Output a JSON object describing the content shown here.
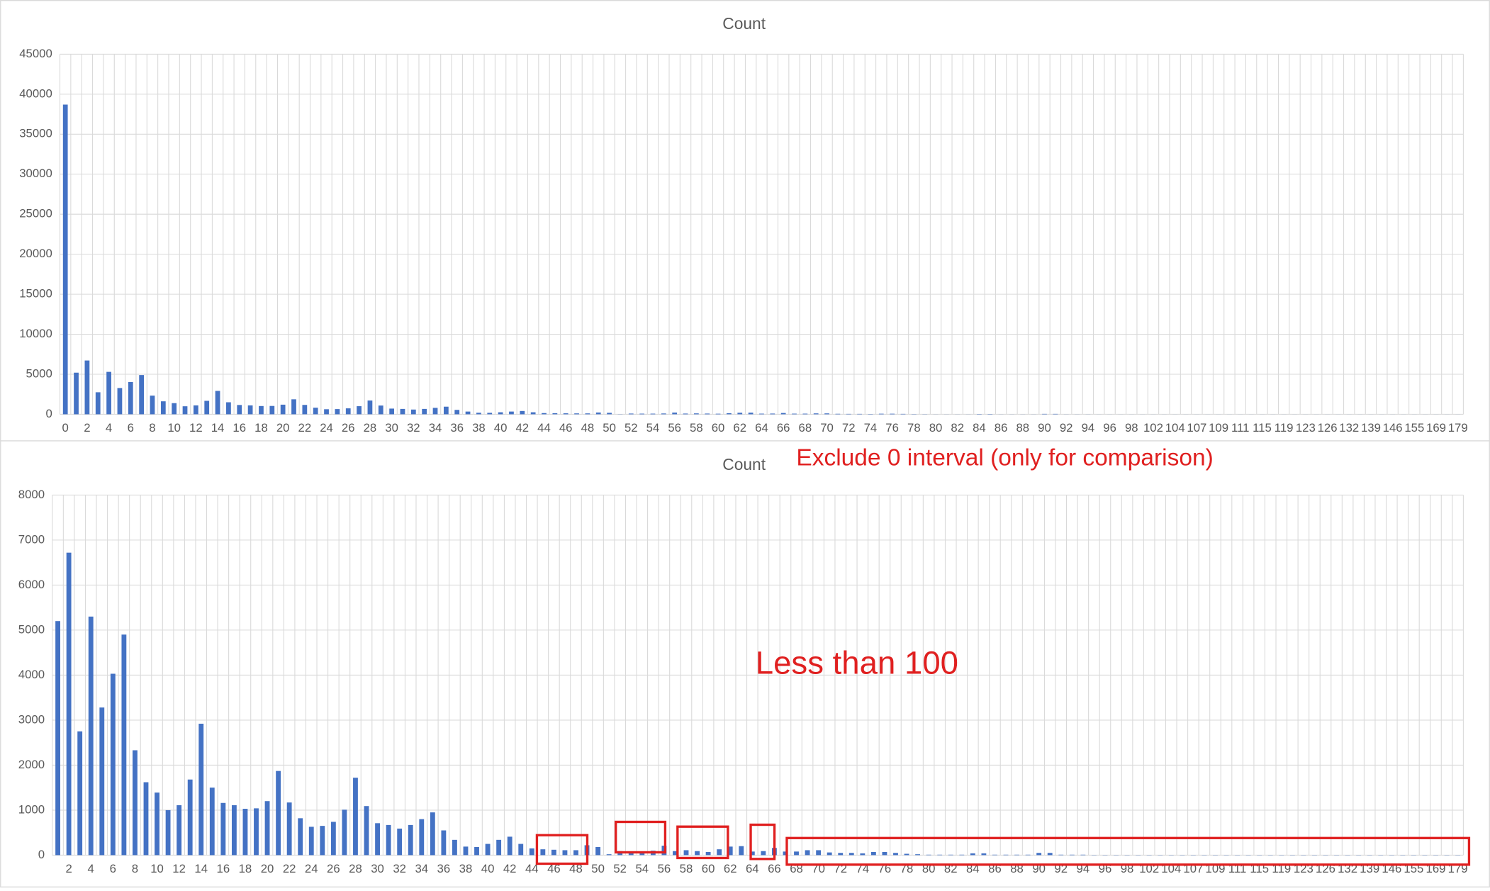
{
  "chart_data": [
    {
      "type": "bar",
      "title": "Count",
      "color": "#4472c4",
      "ylim": [
        0,
        45000
      ],
      "yticks": [
        0,
        5000,
        10000,
        15000,
        20000,
        25000,
        30000,
        35000,
        40000,
        45000
      ],
      "grid": true,
      "categories": [
        0,
        null,
        2,
        null,
        4,
        null,
        6,
        null,
        8,
        null,
        10,
        null,
        12,
        null,
        14,
        null,
        16,
        null,
        18,
        null,
        20,
        null,
        22,
        null,
        24,
        null,
        26,
        null,
        28,
        null,
        30,
        null,
        32,
        null,
        34,
        null,
        36,
        null,
        38,
        null,
        40,
        null,
        42,
        null,
        44,
        null,
        46,
        null,
        48,
        null,
        50,
        null,
        52,
        null,
        54,
        null,
        56,
        null,
        58,
        null,
        60,
        null,
        62,
        null,
        64,
        null,
        66,
        null,
        68,
        null,
        70,
        null,
        72,
        null,
        74,
        null,
        76,
        null,
        78,
        null,
        80,
        null,
        82,
        null,
        84,
        null,
        86,
        null,
        88,
        null,
        90,
        null,
        92,
        null,
        94,
        null,
        96,
        null,
        98,
        null,
        102,
        null,
        104,
        null,
        107,
        null,
        109,
        null,
        111,
        null,
        115,
        null,
        119,
        null,
        123,
        null,
        126,
        null,
        132,
        null,
        139,
        null,
        146,
        null,
        155,
        null,
        169,
        null,
        179
      ],
      "values": [
        38700,
        5200,
        6720,
        2750,
        5300,
        3280,
        4030,
        4900,
        2330,
        1620,
        1390,
        1000,
        1110,
        1680,
        2920,
        1500,
        1160,
        1110,
        1030,
        1040,
        1200,
        1870,
        1170,
        820,
        630,
        650,
        740,
        1010,
        1720,
        1090,
        710,
        670,
        590,
        670,
        800,
        950,
        550,
        340,
        190,
        180,
        250,
        340,
        410,
        250,
        150,
        130,
        120,
        110,
        110,
        220,
        180,
        20,
        90,
        80,
        80,
        100,
        210,
        90,
        110,
        90,
        70,
        130,
        190,
        200,
        80,
        90,
        160,
        80,
        80,
        110,
        110,
        60,
        50,
        50,
        40,
        70,
        70,
        50,
        30,
        20,
        10,
        10,
        10,
        10,
        40,
        40,
        10,
        10,
        10,
        10,
        50,
        50,
        10,
        10,
        10,
        5,
        5,
        5,
        5,
        5,
        5,
        5,
        5,
        5,
        5,
        5,
        5,
        5,
        5,
        5,
        5,
        5,
        5,
        5,
        5,
        5,
        5,
        5,
        5,
        5,
        5,
        5,
        5,
        5,
        5,
        5,
        5,
        5,
        5
      ]
    },
    {
      "type": "bar",
      "title": "Count",
      "color": "#4472c4",
      "ylim": [
        0,
        8000
      ],
      "yticks": [
        0,
        1000,
        2000,
        3000,
        4000,
        5000,
        6000,
        7000,
        8000
      ],
      "grid": true,
      "annotations": [
        "Exclude 0 interval (only for comparison)",
        "Less than 100"
      ],
      "categories": [
        null,
        2,
        null,
        4,
        null,
        6,
        null,
        8,
        null,
        10,
        null,
        12,
        null,
        14,
        null,
        16,
        null,
        18,
        null,
        20,
        null,
        22,
        null,
        24,
        null,
        26,
        null,
        28,
        null,
        30,
        null,
        32,
        null,
        34,
        null,
        36,
        null,
        38,
        null,
        40,
        null,
        42,
        null,
        44,
        null,
        46,
        null,
        48,
        null,
        50,
        null,
        52,
        null,
        54,
        null,
        56,
        null,
        58,
        null,
        60,
        null,
        62,
        null,
        64,
        null,
        66,
        null,
        68,
        null,
        70,
        null,
        72,
        null,
        74,
        null,
        76,
        null,
        78,
        null,
        80,
        null,
        82,
        null,
        84,
        null,
        86,
        null,
        88,
        null,
        90,
        null,
        92,
        null,
        94,
        null,
        96,
        null,
        98,
        null,
        102,
        null,
        104,
        null,
        107,
        null,
        109,
        null,
        111,
        null,
        115,
        null,
        119,
        null,
        123,
        null,
        126,
        null,
        132,
        null,
        139,
        null,
        146,
        null,
        155,
        null,
        169,
        null,
        179
      ],
      "values": [
        5200,
        6720,
        2750,
        5300,
        3280,
        4030,
        4900,
        2330,
        1620,
        1390,
        1000,
        1110,
        1680,
        2920,
        1500,
        1160,
        1110,
        1030,
        1040,
        1200,
        1870,
        1170,
        820,
        630,
        650,
        740,
        1010,
        1720,
        1090,
        710,
        670,
        590,
        670,
        800,
        950,
        550,
        340,
        190,
        180,
        250,
        340,
        410,
        250,
        150,
        130,
        120,
        110,
        110,
        220,
        180,
        20,
        90,
        80,
        80,
        100,
        210,
        90,
        110,
        90,
        70,
        130,
        190,
        200,
        80,
        90,
        160,
        80,
        80,
        110,
        110,
        60,
        50,
        50,
        40,
        70,
        70,
        50,
        30,
        20,
        10,
        10,
        10,
        10,
        40,
        40,
        10,
        10,
        10,
        10,
        50,
        50,
        10,
        10,
        10,
        5,
        5,
        5,
        5,
        5,
        5,
        5,
        5,
        5,
        5,
        5,
        5,
        5,
        5,
        5,
        5,
        5,
        5,
        5,
        5,
        5,
        5,
        5,
        5,
        5,
        5,
        5,
        5,
        5,
        5,
        5,
        5,
        5,
        5
      ]
    }
  ]
}
